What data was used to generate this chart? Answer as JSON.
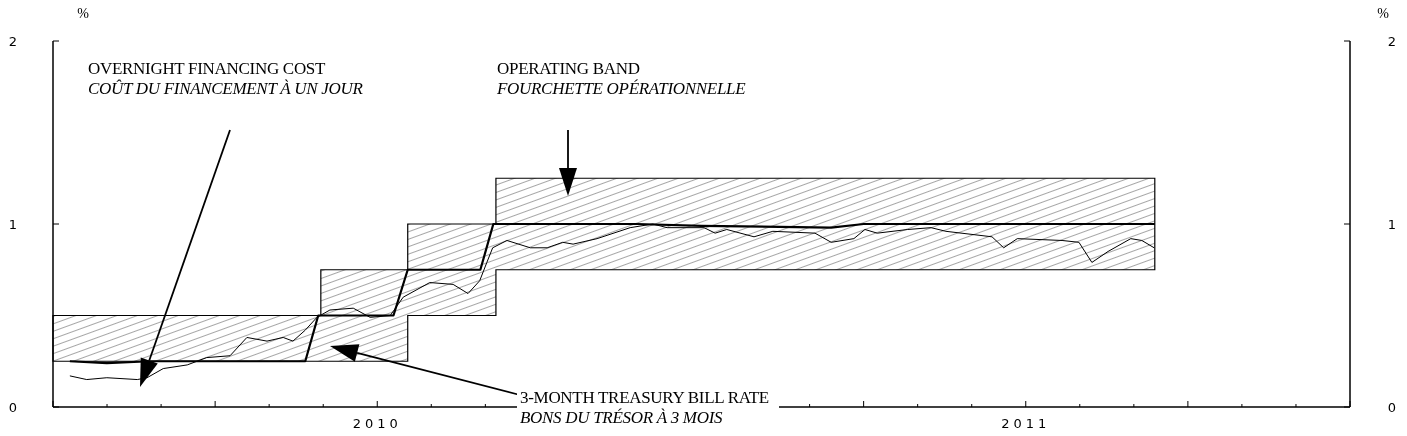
{
  "chart_data": {
    "type": "line",
    "ylabel": "%",
    "y2label": "%",
    "xlim": [
      2010,
      2012
    ],
    "xticks": [
      {
        "value": 2010,
        "label": null
      },
      {
        "value": 2010.0833,
        "label": null
      },
      {
        "value": 2010.1667,
        "label": null
      },
      {
        "value": 2010.25,
        "label": null
      },
      {
        "value": 2010.3333,
        "label": null
      },
      {
        "value": 2010.4167,
        "label": null
      },
      {
        "value": 2010.5,
        "label": "2010"
      },
      {
        "value": 2010.5833,
        "label": null
      },
      {
        "value": 2010.6667,
        "label": null
      },
      {
        "value": 2010.75,
        "label": null
      },
      {
        "value": 2010.8333,
        "label": null
      },
      {
        "value": 2010.9167,
        "label": null
      },
      {
        "value": 2011,
        "label": null
      },
      {
        "value": 2011.0833,
        "label": null
      },
      {
        "value": 2011.1667,
        "label": null
      },
      {
        "value": 2011.25,
        "label": null
      },
      {
        "value": 2011.3333,
        "label": null
      },
      {
        "value": 2011.4167,
        "label": null
      },
      {
        "value": 2011.5,
        "label": "2011"
      },
      {
        "value": 2011.5833,
        "label": null
      },
      {
        "value": 2011.6667,
        "label": null
      },
      {
        "value": 2011.75,
        "label": null
      },
      {
        "value": 2011.8333,
        "label": null
      },
      {
        "value": 2011.9167,
        "label": null
      },
      {
        "value": 2012,
        "label": null
      }
    ],
    "ylim": [
      0,
      2
    ],
    "yticks": [
      0,
      1,
      2
    ],
    "y2lim": [
      0,
      2
    ],
    "y2ticks": [
      0,
      1,
      2
    ],
    "series": [
      {
        "color": "#000000",
        "x": [
          2010,
          2010.026,
          2010.083,
          2010.15,
          2010.3,
          2010.389,
          2010.409,
          2010.413,
          2010.413,
          2010.525,
          2010.547,
          2010.547,
          2010.659,
          2010.679,
          2010.683,
          2010.683,
          2010.9,
          2011.0,
          2011.2,
          2011.25,
          2011.5,
          2011.699
        ],
        "values": [
          null,
          0.25,
          0.24,
          0.25,
          0.25,
          0.25,
          0.5,
          0.5,
          0.5,
          0.5,
          0.75,
          0.75,
          0.75,
          1.0,
          1.0,
          1.0,
          1.0,
          0.99,
          0.98,
          1.0,
          1.0,
          1.0
        ],
        "upper": [
          0.5,
          0.5,
          0.5,
          0.5,
          0.5,
          0.5,
          0.5,
          0.5,
          0.75,
          0.75,
          0.75,
          1.0,
          1.0,
          1.0,
          1.0,
          1.25,
          1.25,
          1.25,
          1.25,
          1.25,
          1.25,
          1.25
        ],
        "lower": [
          0.25,
          0.25,
          0.25,
          0.25,
          0.25,
          0.25,
          0.25,
          0.25,
          0.25,
          0.25,
          0.25,
          0.5,
          0.5,
          0.5,
          0.5,
          0.75,
          0.75,
          0.75,
          0.75,
          0.75,
          0.75,
          0.75
        ]
      },
      {
        "color": "#000000",
        "x": [
          2010.026,
          2010.052,
          2010.083,
          2010.13,
          2010.145,
          2010.17,
          2010.207,
          2010.237,
          2010.273,
          2010.299,
          2010.33,
          2010.355,
          2010.37,
          2010.389,
          2010.407,
          2010.427,
          2010.463,
          2010.489,
          2010.52,
          2010.54,
          2010.581,
          2010.617,
          2010.64,
          2010.658,
          2010.669,
          2010.678,
          2010.7,
          2010.736,
          2010.762,
          2010.786,
          2010.802,
          2010.839,
          2010.89,
          2010.925,
          2010.947,
          2011.004,
          2011.021,
          2011.039,
          2011.081,
          2011.11,
          2011.175,
          2011.2,
          2011.235,
          2011.252,
          2011.271,
          2011.318,
          2011.354,
          2011.377,
          2011.448,
          2011.466,
          2011.487,
          2011.556,
          2011.582,
          2011.602,
          2011.627,
          2011.662,
          2011.679,
          2011.698
        ],
        "values": [
          0.17,
          0.15,
          0.16,
          0.15,
          0.16,
          0.21,
          0.23,
          0.27,
          0.28,
          0.38,
          0.36,
          0.38,
          0.36,
          0.42,
          0.49,
          0.53,
          0.54,
          0.49,
          0.5,
          0.6,
          0.68,
          0.67,
          0.62,
          0.69,
          0.79,
          0.87,
          0.91,
          0.87,
          0.87,
          0.9,
          0.89,
          0.92,
          0.98,
          1.0,
          0.98,
          0.98,
          0.95,
          0.97,
          0.93,
          0.96,
          0.95,
          0.9,
          0.92,
          0.97,
          0.95,
          0.97,
          0.98,
          0.96,
          0.93,
          0.87,
          0.92,
          0.91,
          0.9,
          0.79,
          0.85,
          0.92,
          0.91,
          0.87
        ]
      }
    ],
    "annotations": [
      "OVERNIGHT FINANCING COST\nCOÛT DU FINANCEMENT À UN JOUR",
      "OPERATING BAND\nFOURCHETTE OPÉRATIONNELLE",
      "3-MONTH TREASURY BILL RATE\nBONS DU TRÉSOR À 3 MOIS"
    ]
  }
}
